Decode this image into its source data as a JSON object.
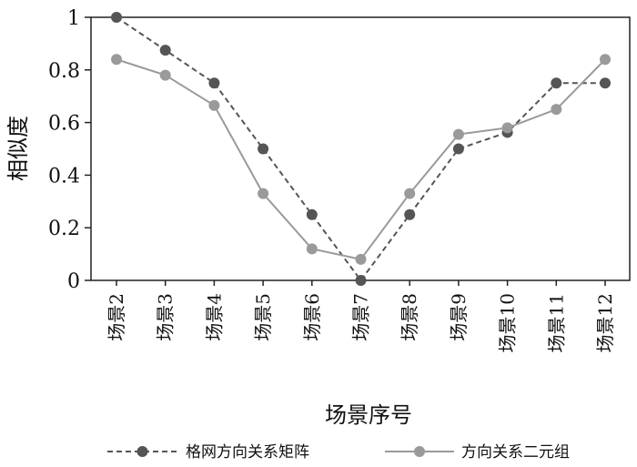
{
  "chart_data": {
    "type": "line",
    "xlabel": "场景序号",
    "ylabel": "相似度",
    "ylim": [
      0,
      1
    ],
    "yticks": [
      "0",
      "0.2",
      "0.4",
      "0.6",
      "0.8",
      "1"
    ],
    "categories": [
      "场景2",
      "场景3",
      "场景4",
      "场景5",
      "场景6",
      "场景7",
      "场景8",
      "场景9",
      "场景10",
      "场景11",
      "场景12"
    ],
    "grid": false,
    "legend_position": "bottom",
    "series": [
      {
        "name": "格网方向关系矩阵",
        "color": "#555555",
        "marker_color": "#555555",
        "line_style": "dashed",
        "values": [
          1.0,
          0.875,
          0.75,
          0.5,
          0.25,
          0.0,
          0.25,
          0.5,
          0.5625,
          0.75,
          0.75
        ]
      },
      {
        "name": "方向关系二元组",
        "color": "#9a9a9a",
        "marker_color": "#9a9a9a",
        "line_style": "solid",
        "values": [
          0.84,
          0.78,
          0.665,
          0.33,
          0.12,
          0.08,
          0.33,
          0.555,
          0.58,
          0.65,
          0.84
        ]
      }
    ]
  }
}
